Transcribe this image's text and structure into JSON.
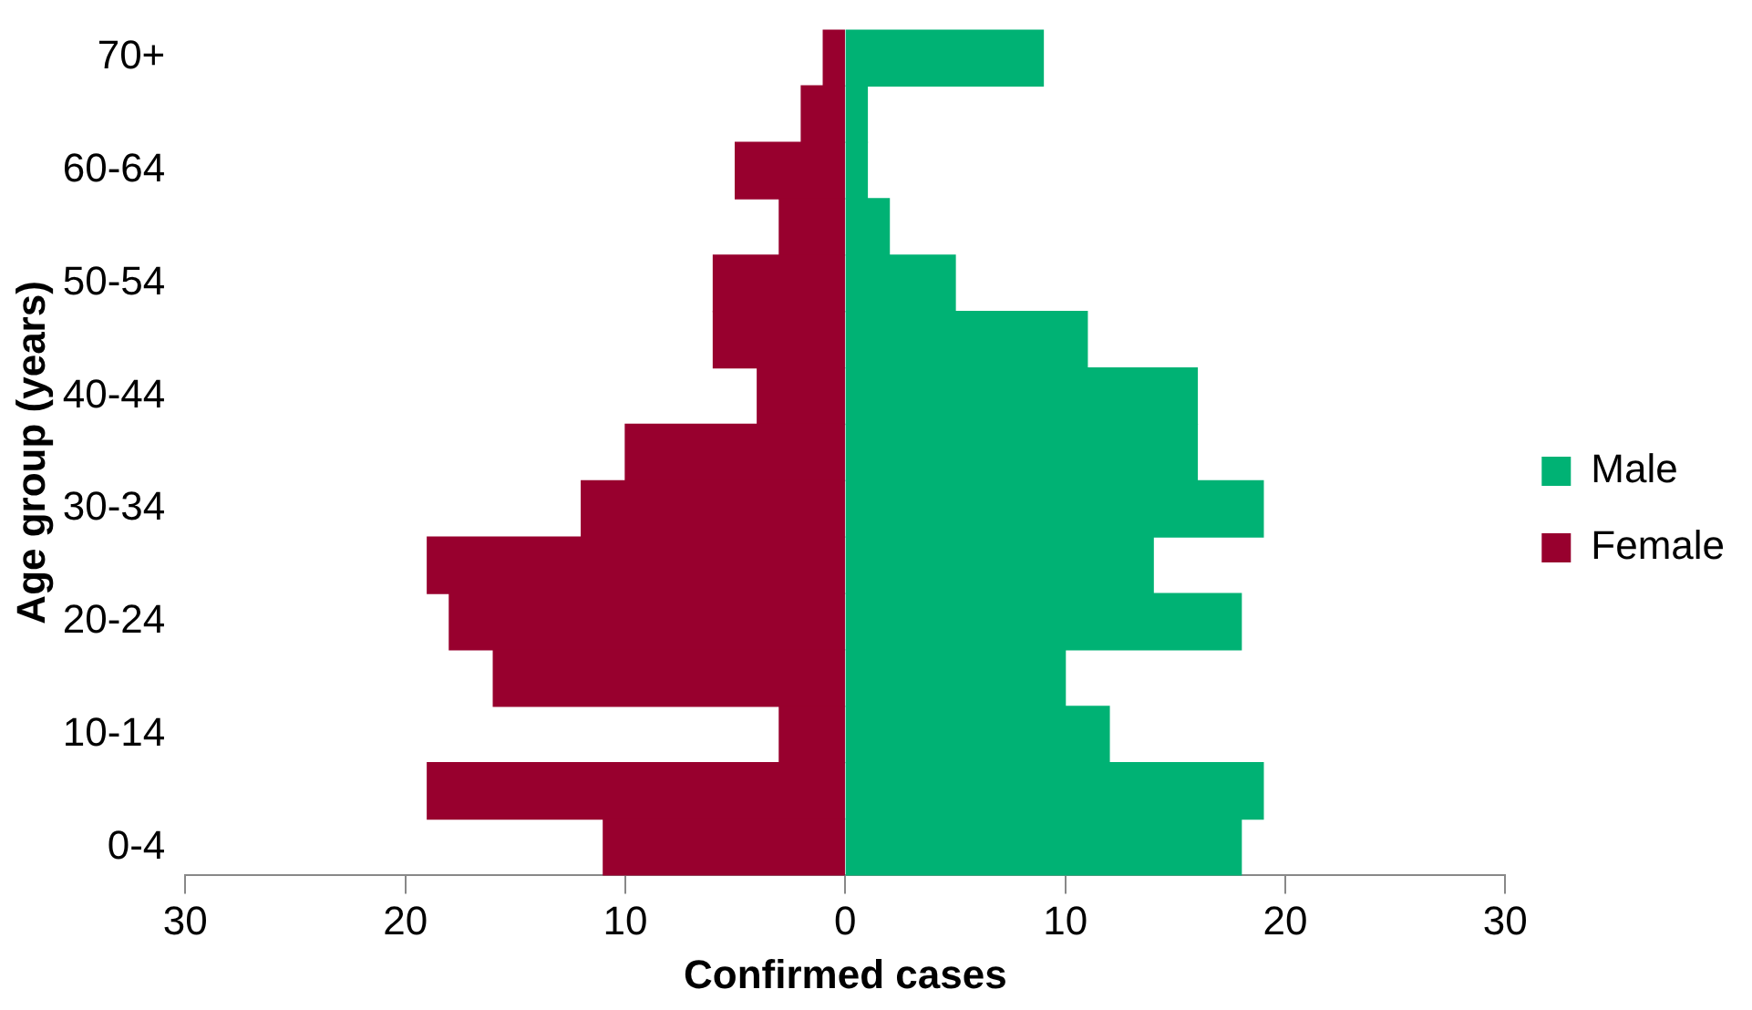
{
  "chart_data": {
    "type": "bar",
    "orientation": "horizontal",
    "stacked": true,
    "xlabel": "Confirmed cases",
    "ylabel": "Age group (years)",
    "categories": [
      "70+",
      null,
      "60-64",
      null,
      "50-54",
      null,
      "40-44",
      null,
      "30-34",
      null,
      "20-24",
      null,
      "10-14",
      null,
      "0-4"
    ],
    "series": [
      {
        "name": "Male",
        "color": "#00b274",
        "values": [
          9,
          1,
          1,
          2,
          5,
          11,
          16,
          16,
          19,
          14,
          18,
          10,
          12,
          19,
          18
        ]
      },
      {
        "name": "Female",
        "color": "#98002e",
        "values": [
          -1,
          -2,
          -5,
          -3,
          -6,
          -6,
          -4,
          -10,
          -12,
          -19,
          -18,
          -16,
          -3,
          -19,
          -11
        ]
      }
    ],
    "xlim": [
      -30,
      30
    ],
    "xticks": [
      {
        "value": -30,
        "label": "30"
      },
      {
        "value": -20,
        "label": "20"
      },
      {
        "value": -10,
        "label": "10"
      },
      0,
      10,
      20,
      30
    ],
    "grid": false,
    "legend": "right"
  }
}
